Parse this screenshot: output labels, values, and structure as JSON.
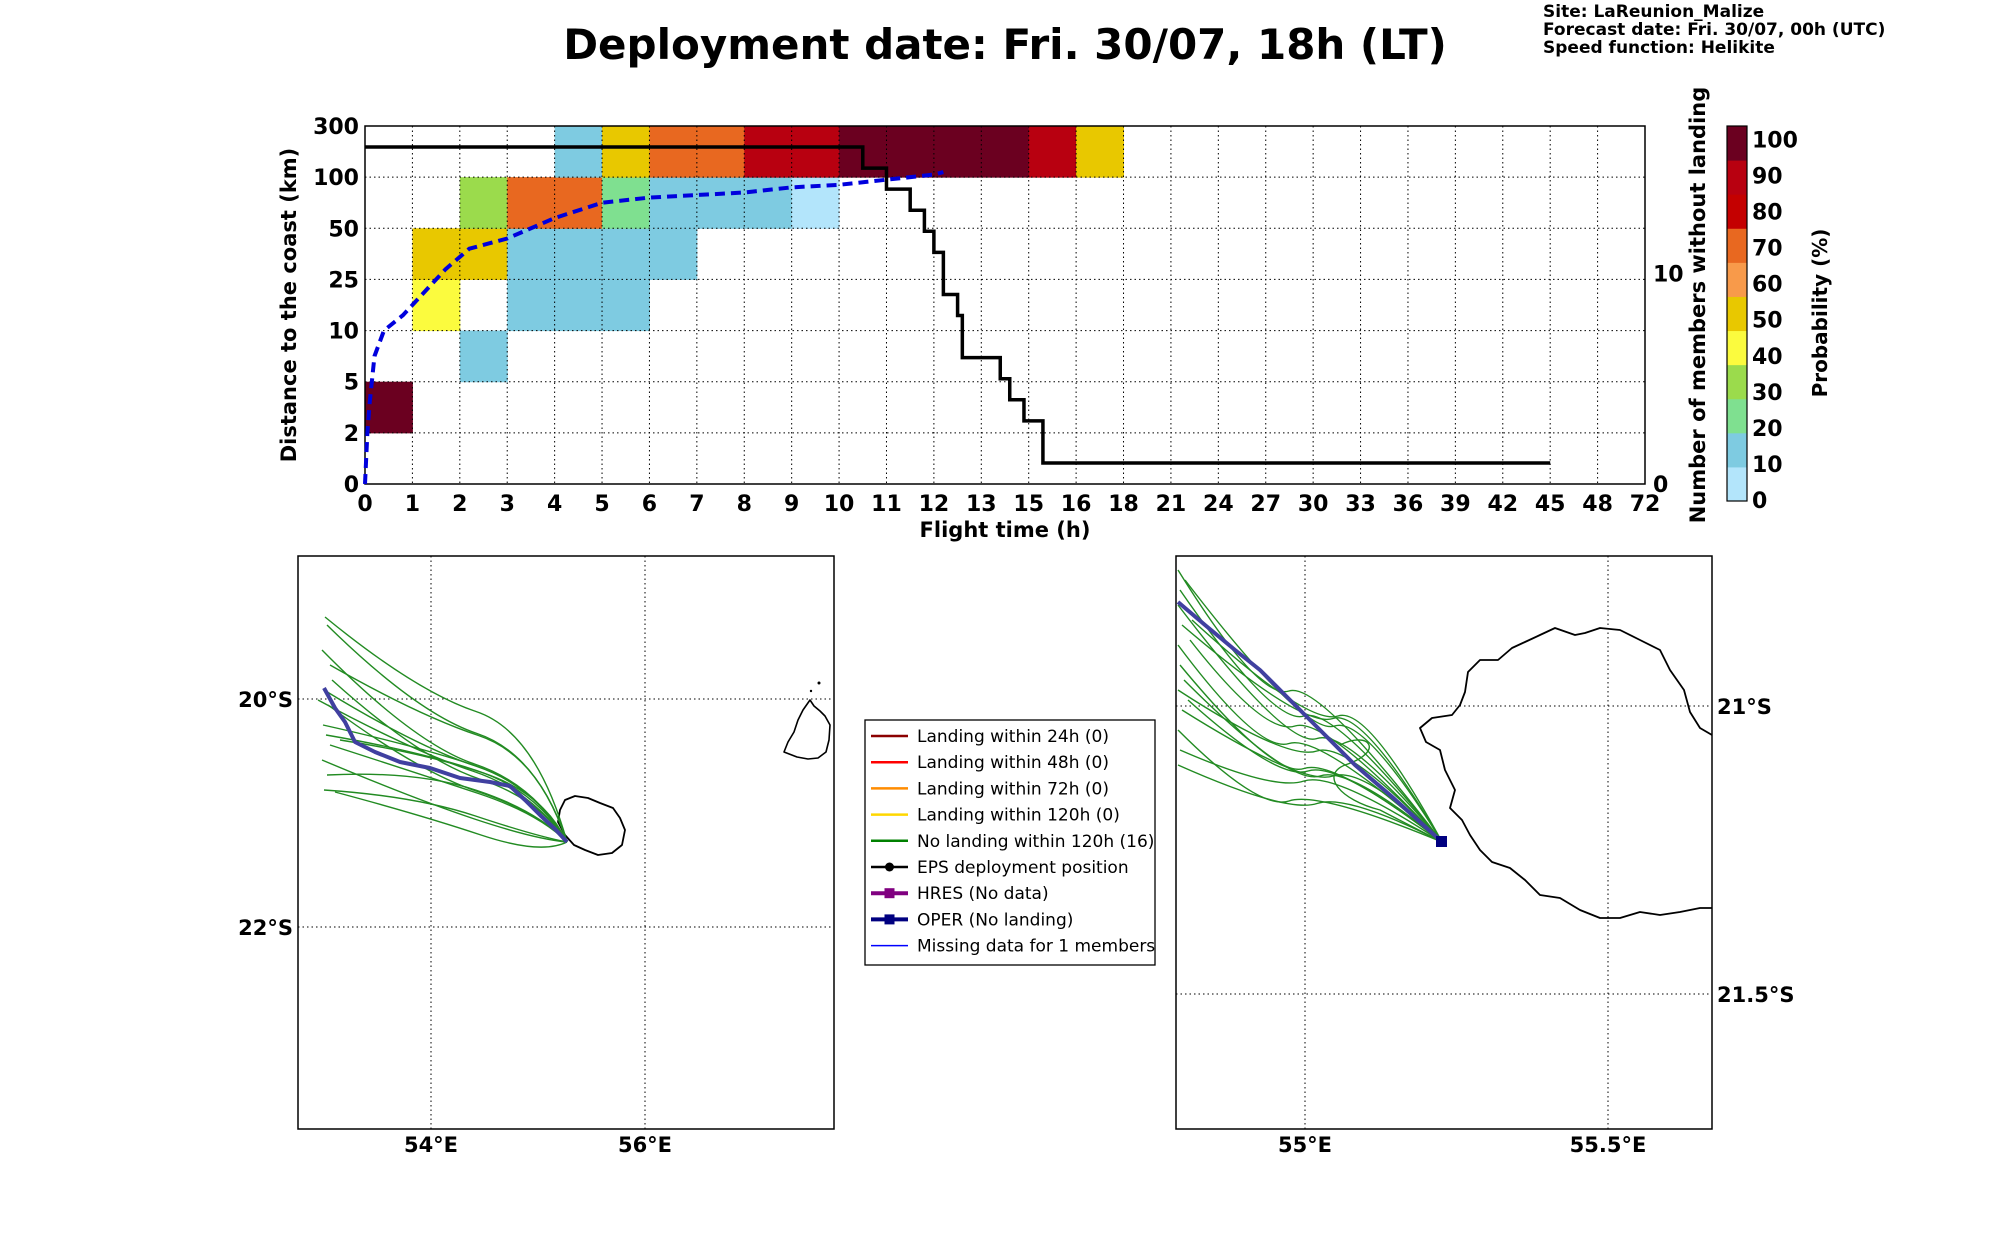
{
  "title": "Deployment date: Fri. 30/07, 18h (LT)",
  "info": {
    "site": "Site: LaReunion_Malize",
    "forecast": "Forecast date: Fri. 30/07, 00h (UTC)",
    "speed": "Speed function: Helikite"
  },
  "chart_data": [
    {
      "type": "heatmap",
      "xlabel": "Flight time (h)",
      "ylabel": "Distance to the coast (km)",
      "ylabel_right": "Number of members without landing",
      "x_ticks": [
        "0",
        "1",
        "2",
        "3",
        "4",
        "5",
        "6",
        "7",
        "8",
        "9",
        "10",
        "11",
        "12",
        "13",
        "15",
        "16",
        "18",
        "21",
        "24",
        "27",
        "30",
        "33",
        "36",
        "39",
        "42",
        "45",
        "48",
        "72"
      ],
      "y_ticks": [
        "0",
        "2",
        "5",
        "10",
        "25",
        "50",
        "100",
        "300"
      ],
      "right_ticks": [
        "0",
        "10"
      ],
      "right_ylim": [
        0,
        17
      ],
      "colorbar": {
        "label": "Probability (%)",
        "ticks": [
          "0",
          "10",
          "20",
          "30",
          "40",
          "50",
          "60",
          "70",
          "80",
          "90",
          "100"
        ],
        "colors": [
          "#b3e5fb",
          "#7ecbe1",
          "#7fe090",
          "#9bdb4c",
          "#fbfb3e",
          "#e8c800",
          "#f89a4a",
          "#e86820",
          "#c40000",
          "#b80010",
          "#6b0020"
        ]
      },
      "cells": [
        {
          "x": 0,
          "y": 1,
          "p": 100
        },
        {
          "x": 1,
          "y": 3,
          "p": 40
        },
        {
          "x": 1,
          "y": 4,
          "p": 50
        },
        {
          "x": 2,
          "y": 2,
          "p": 10
        },
        {
          "x": 2,
          "y": 4,
          "p": 50
        },
        {
          "x": 2,
          "y": 5,
          "p": 30
        },
        {
          "x": 3,
          "y": 3,
          "p": 10
        },
        {
          "x": 3,
          "y": 4,
          "p": 10
        },
        {
          "x": 3,
          "y": 5,
          "p": 70
        },
        {
          "x": 4,
          "y": 3,
          "p": 10
        },
        {
          "x": 4,
          "y": 4,
          "p": 10
        },
        {
          "x": 4,
          "y": 5,
          "p": 70
        },
        {
          "x": 4,
          "y": 6,
          "p": 10
        },
        {
          "x": 5,
          "y": 3,
          "p": 10
        },
        {
          "x": 5,
          "y": 4,
          "p": 10
        },
        {
          "x": 5,
          "y": 5,
          "p": 20
        },
        {
          "x": 5,
          "y": 6,
          "p": 50
        },
        {
          "x": 6,
          "y": 4,
          "p": 10
        },
        {
          "x": 6,
          "y": 5,
          "p": 10
        },
        {
          "x": 6,
          "y": 6,
          "p": 70
        },
        {
          "x": 7,
          "y": 5,
          "p": 10
        },
        {
          "x": 7,
          "y": 6,
          "p": 70
        },
        {
          "x": 8,
          "y": 5,
          "p": 10
        },
        {
          "x": 8,
          "y": 6,
          "p": 90
        },
        {
          "x": 9,
          "y": 5,
          "p": 0
        },
        {
          "x": 9,
          "y": 6,
          "p": 90
        },
        {
          "x": 10,
          "y": 6,
          "p": 100
        },
        {
          "x": 11,
          "y": 6,
          "p": 100
        },
        {
          "x": 12,
          "y": 6,
          "p": 100
        },
        {
          "x": 13,
          "y": 6,
          "p": 100
        },
        {
          "x": 14,
          "y": 6,
          "p": 90
        },
        {
          "x": 15,
          "y": 6,
          "p": 50
        }
      ],
      "median_distance_curve": [
        [
          0,
          0
        ],
        [
          0.05,
          1.0
        ],
        [
          0.1,
          1.6
        ],
        [
          0.2,
          2.5
        ],
        [
          0.4,
          3.0
        ],
        [
          0.8,
          3.3
        ],
        [
          1.2,
          3.7
        ],
        [
          1.7,
          4.2
        ],
        [
          2.2,
          4.6
        ],
        [
          3.0,
          4.8
        ],
        [
          4.0,
          5.2
        ],
        [
          5.0,
          5.5
        ],
        [
          6.0,
          5.6
        ],
        [
          7.0,
          5.65
        ],
        [
          8.0,
          5.7
        ],
        [
          9.0,
          5.8
        ],
        [
          10.0,
          5.85
        ],
        [
          11.0,
          5.95
        ],
        [
          12.0,
          6.05
        ],
        [
          12.2,
          6.1
        ]
      ],
      "members_without_landing": [
        [
          0,
          16
        ],
        [
          10.5,
          16
        ],
        [
          10.5,
          15
        ],
        [
          11,
          15
        ],
        [
          11,
          14
        ],
        [
          11.5,
          14
        ],
        [
          11.5,
          13
        ],
        [
          11.8,
          13
        ],
        [
          11.8,
          12
        ],
        [
          12,
          12
        ],
        [
          12,
          11
        ],
        [
          12.2,
          11
        ],
        [
          12.2,
          9
        ],
        [
          12.5,
          9
        ],
        [
          12.5,
          8
        ],
        [
          12.6,
          8
        ],
        [
          12.6,
          6
        ],
        [
          13.4,
          6
        ],
        [
          13.4,
          5
        ],
        [
          13.6,
          5
        ],
        [
          13.6,
          4
        ],
        [
          13.9,
          4
        ],
        [
          13.9,
          3
        ],
        [
          14.3,
          3
        ],
        [
          14.3,
          1
        ],
        [
          25,
          1
        ]
      ]
    },
    {
      "type": "line",
      "map": "large",
      "lon_ticks": [
        "54°E",
        "56°E"
      ],
      "lat_ticks": [
        "20°S",
        "22°S"
      ]
    },
    {
      "type": "line",
      "map": "zoom",
      "lon_ticks": [
        "55°E",
        "55.5°E"
      ],
      "lat_ticks": [
        "21°S",
        "21.5°S"
      ]
    }
  ],
  "legend": [
    {
      "label": "Landing within 24h (0)",
      "color": "#8b0000",
      "marker": "none"
    },
    {
      "label": "Landing within 48h (0)",
      "color": "#ff0000",
      "marker": "none"
    },
    {
      "label": "Landing within 72h (0)",
      "color": "#ff8c00",
      "marker": "none"
    },
    {
      "label": "Landing within 120h (0)",
      "color": "#ffd700",
      "marker": "none"
    },
    {
      "label": "No landing within 120h (16)",
      "color": "#008000",
      "marker": "none"
    },
    {
      "label": "EPS deployment position",
      "color": "#000000",
      "marker": "circle"
    },
    {
      "label": "HRES (No data)",
      "color": "#800080",
      "marker": "square"
    },
    {
      "label": "OPER (No landing)",
      "color": "#000080",
      "marker": "square"
    },
    {
      "label": "Missing data for 1 members",
      "color": "#0000ff",
      "marker": "thin"
    }
  ]
}
